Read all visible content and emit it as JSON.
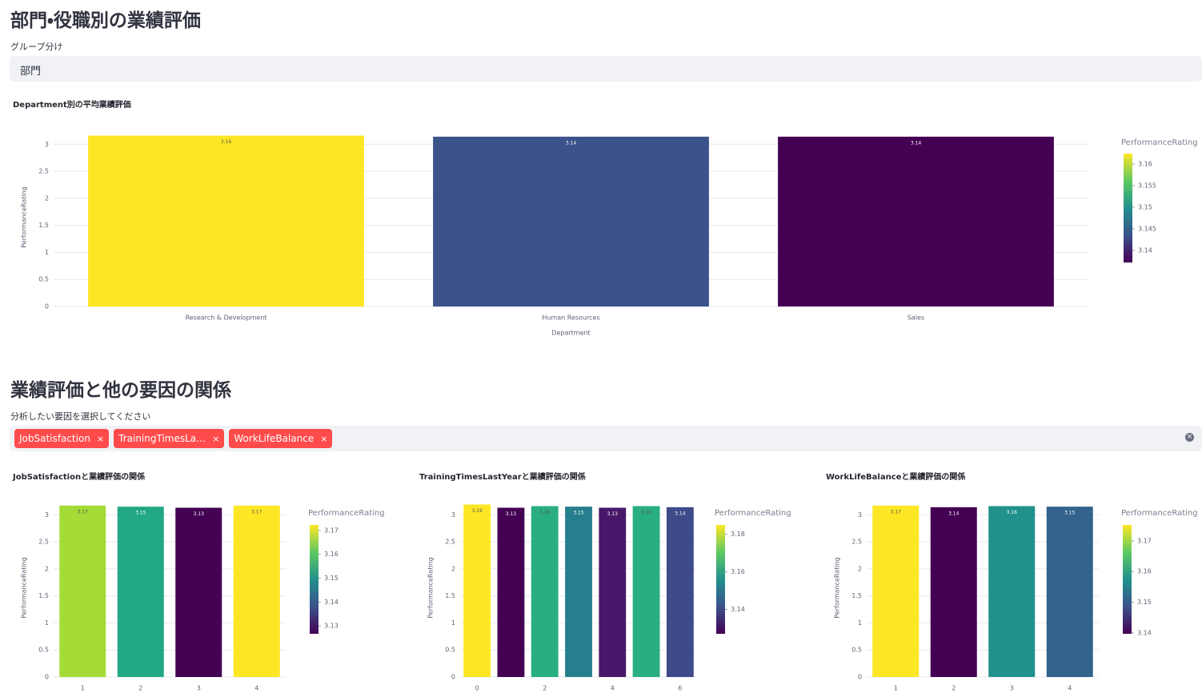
{
  "header": {
    "title": "部門・役職別の業績評価"
  },
  "group_select": {
    "label": "グループ分け",
    "value": "部門"
  },
  "section2": {
    "title": "業績評価と他の要因の関係"
  },
  "factor_select": {
    "label": "分析したい要因を選択してください",
    "tags": [
      "JobSatisfaction",
      "TrainingTimesLa…",
      "WorkLifeBalance"
    ]
  },
  "chart_data": [
    {
      "type": "bar",
      "title": "Department別の平均業績評価",
      "x_label": "Department",
      "y_label": "PerformanceRating",
      "categories": [
        "Research & Development",
        "Human Resources",
        "Sales"
      ],
      "values": [
        3.16,
        3.14,
        3.14
      ],
      "colors": [
        "#fde725",
        "#3b528b",
        "#440154"
      ],
      "ylim": [
        0,
        3.3
      ],
      "yticks": [
        0,
        0.5,
        1,
        1.5,
        2,
        2.5,
        3
      ],
      "grid": true,
      "colorbar": {
        "title": "PerformanceRating",
        "range": [
          3.1372,
          3.1624
        ],
        "ticks": [
          3.14,
          3.145,
          3.15,
          3.155,
          3.16
        ]
      }
    },
    {
      "type": "bar",
      "title": "JobSatisfactionと業績評価の関係",
      "y_label": "PerformanceRating",
      "x": [
        1,
        2,
        3,
        4
      ],
      "xlim": [
        0.5,
        4.5
      ],
      "xticks": [
        1,
        2,
        3,
        4
      ],
      "values": [
        3.17,
        3.15,
        3.13,
        3.17
      ],
      "colors": [
        "#a5db36",
        "#22a884",
        "#440154",
        "#fde725"
      ],
      "ylim": [
        0,
        3.3
      ],
      "yticks": [
        0,
        0.5,
        1,
        1.5,
        2,
        2.5,
        3
      ],
      "grid": true,
      "colorbar": {
        "title": "PerformanceRating",
        "range": [
          3.1267,
          3.1723
        ],
        "ticks": [
          3.13,
          3.14,
          3.15,
          3.16,
          3.17
        ]
      }
    },
    {
      "type": "bar",
      "title": "TrainingTimesLastYearと業績評価の関係",
      "y_label": "PerformanceRating",
      "x": [
        0,
        1,
        2,
        3,
        4,
        5,
        6
      ],
      "xlim": [
        -0.5,
        6.5
      ],
      "xticks": [
        0,
        2,
        4,
        6
      ],
      "values": [
        3.19,
        3.13,
        3.16,
        3.15,
        3.13,
        3.16,
        3.14
      ],
      "colors": [
        "#fde725",
        "#440154",
        "#29af7f",
        "#277f8e",
        "#481769",
        "#29af7f",
        "#3e4a89"
      ],
      "ylim": [
        0,
        3.3
      ],
      "yticks": [
        0,
        0.5,
        1,
        1.5,
        2,
        2.5,
        3
      ],
      "grid": true,
      "colorbar": {
        "title": "PerformanceRating",
        "range": [
          3.127,
          3.185
        ],
        "ticks": [
          3.14,
          3.16,
          3.18
        ]
      }
    },
    {
      "type": "bar",
      "title": "WorkLifeBalanceと業績評価の関係",
      "y_label": "PerformanceRating",
      "x": [
        1,
        2,
        3,
        4
      ],
      "xlim": [
        0.5,
        4.5
      ],
      "xticks": [
        1,
        2,
        3,
        4
      ],
      "values": [
        3.17,
        3.14,
        3.16,
        3.15
      ],
      "colors": [
        "#fde725",
        "#440154",
        "#21918c",
        "#33638d"
      ],
      "ylim": [
        0,
        3.3
      ],
      "yticks": [
        0,
        0.5,
        1,
        1.5,
        2,
        2.5,
        3
      ],
      "grid": true,
      "colorbar": {
        "title": "PerformanceRating",
        "range": [
          3.1397,
          3.1752
        ],
        "ticks": [
          3.14,
          3.15,
          3.16,
          3.17
        ]
      }
    }
  ]
}
